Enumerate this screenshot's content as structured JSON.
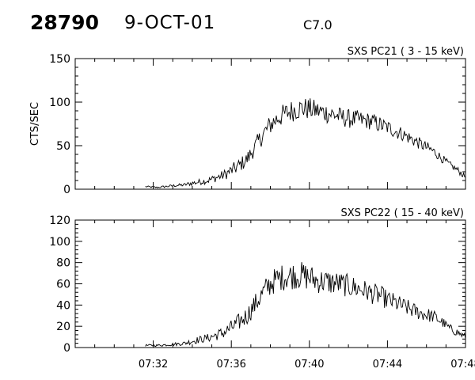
{
  "header": {
    "event_id": "28790",
    "date": "9-OCT-01",
    "flare_class": "C7.0"
  },
  "colors": {
    "background": "#ffffff",
    "foreground": "#000000"
  },
  "chart_data": [
    {
      "type": "line",
      "title": "SXS PC21  (  3 - 15 keV)",
      "xlabel": "",
      "ylabel": "CTS/SEC",
      "ylim": [
        0,
        150
      ],
      "yticks": [
        0,
        50,
        100,
        150
      ],
      "xlim": [
        "07:28",
        "07:48"
      ],
      "xticks": [
        "07:32",
        "07:36",
        "07:40",
        "07:44",
        "07:48"
      ],
      "show_xtick_labels": false,
      "grid": false,
      "series": [
        {
          "x": [
            "07:31.6",
            "07:32.2",
            "07:33.0",
            "07:33.6",
            "07:34.0",
            "07:34.8",
            "07:35.6",
            "07:36.2",
            "07:36.8",
            "07:37.2",
            "07:37.6",
            "07:38.0",
            "07:38.4",
            "07:38.8",
            "07:39.2",
            "07:39.6",
            "07:40.0",
            "07:40.4",
            "07:40.8",
            "07:41.2",
            "07:41.6",
            "07:42.0",
            "07:42.4",
            "07:42.8",
            "07:43.2",
            "07:43.6",
            "07:44.0",
            "07:44.4",
            "07:44.8",
            "07:45.2",
            "07:45.6",
            "07:46.0",
            "07:46.4",
            "07:46.8",
            "07:47.2",
            "07:47.6",
            "07:48.0"
          ],
          "y": [
            3,
            2,
            4,
            5,
            7,
            10,
            16,
            24,
            34,
            48,
            62,
            74,
            82,
            87,
            91,
            93,
            92,
            90,
            88,
            86,
            83,
            81,
            80,
            79,
            78,
            74,
            71,
            67,
            63,
            58,
            53,
            48,
            43,
            35,
            28,
            22,
            14
          ],
          "noise": [
            1,
            1,
            1.5,
            2,
            3,
            4,
            6,
            8,
            9,
            10,
            11,
            12,
            12,
            13,
            13,
            13,
            13,
            12,
            12,
            12,
            11,
            11,
            11,
            10,
            10,
            10,
            9,
            9,
            8,
            8,
            7,
            7,
            6,
            5,
            4,
            4,
            3
          ]
        }
      ]
    },
    {
      "type": "line",
      "title": "SXS PC22  ( 15 - 40 keV)",
      "xlabel": "",
      "ylabel": "",
      "ylim": [
        0,
        120
      ],
      "yticks": [
        0,
        20,
        40,
        60,
        80,
        100,
        120
      ],
      "xlim": [
        "07:28",
        "07:48"
      ],
      "xticks": [
        "07:32",
        "07:36",
        "07:40",
        "07:44",
        "07:48"
      ],
      "show_xtick_labels": true,
      "grid": false,
      "series": [
        {
          "x": [
            "07:31.6",
            "07:32.2",
            "07:33.0",
            "07:33.6",
            "07:34.0",
            "07:34.8",
            "07:35.6",
            "07:36.2",
            "07:36.8",
            "07:37.2",
            "07:37.6",
            "07:38.0",
            "07:38.4",
            "07:38.8",
            "07:39.2",
            "07:39.6",
            "07:40.0",
            "07:40.4",
            "07:40.8",
            "07:41.2",
            "07:41.6",
            "07:42.0",
            "07:42.4",
            "07:42.8",
            "07:43.2",
            "07:43.6",
            "07:44.0",
            "07:44.4",
            "07:44.8",
            "07:45.2",
            "07:45.6",
            "07:46.0",
            "07:46.4",
            "07:46.8",
            "07:47.2",
            "07:47.6",
            "07:48.0"
          ],
          "y": [
            2,
            2,
            3,
            4,
            6,
            9,
            14,
            21,
            30,
            40,
            51,
            60,
            65,
            67,
            68,
            68,
            66,
            63,
            62,
            61,
            60,
            58,
            56,
            54,
            51,
            49,
            45,
            42,
            39,
            36,
            33,
            31,
            29,
            24,
            18,
            14,
            10
          ],
          "noise": [
            1,
            1,
            1.5,
            2,
            3,
            4,
            6,
            8,
            9,
            10,
            11,
            12,
            12,
            13,
            13,
            13,
            13,
            12,
            12,
            12,
            11,
            11,
            11,
            10,
            10,
            10,
            9,
            9,
            8,
            8,
            7,
            7,
            6,
            5,
            4,
            4,
            3
          ]
        }
      ]
    }
  ]
}
